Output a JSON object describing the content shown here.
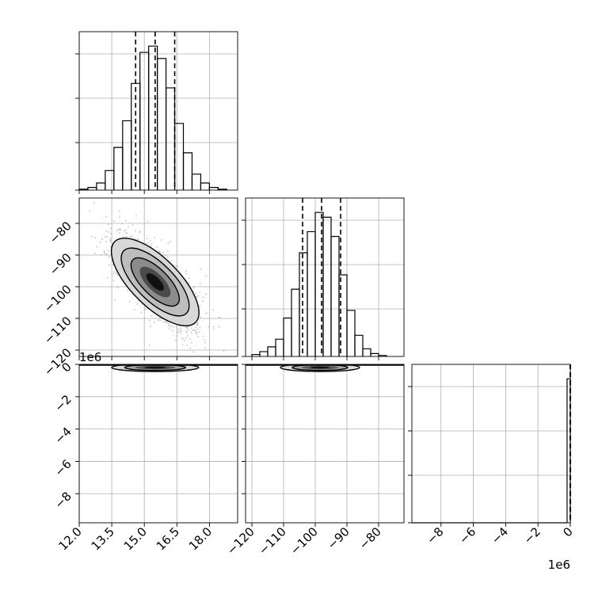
{
  "chart_data": {
    "type": "corner",
    "grid": true,
    "parameters": [
      {
        "range": [
          12.0,
          19.3
        ],
        "ticks": [
          12.0,
          13.5,
          15.0,
          16.5,
          18.0
        ],
        "tick_labels": [
          "12.0",
          "13.5",
          "15.0",
          "16.5",
          "18.0"
        ]
      },
      {
        "range": [
          -122,
          -72
        ],
        "ticks": [
          -120,
          -110,
          -100,
          -90,
          -80
        ],
        "tick_labels": [
          "−120",
          "−110",
          "−100",
          "−90",
          "−80"
        ]
      },
      {
        "range": [
          -9800000.0,
          0.0
        ],
        "ticks": [
          -8000000.0,
          -6000000.0,
          -4000000.0,
          -2000000.0,
          0
        ],
        "tick_labels": [
          "−8",
          "−6",
          "−4",
          "−2",
          "0"
        ],
        "offset_text": "1e6"
      }
    ],
    "marginals": [
      {
        "param": 0,
        "bin_edges": [
          12.0,
          12.4,
          12.8,
          13.2,
          13.6,
          14.0,
          14.4,
          14.8,
          15.2,
          15.6,
          16.0,
          16.4,
          16.8,
          17.2,
          17.6,
          18.0,
          18.4,
          18.8
        ],
        "counts": [
          1,
          3,
          8,
          22,
          48,
          78,
          120,
          155,
          162,
          148,
          115,
          75,
          42,
          18,
          8,
          3,
          1
        ],
        "quantiles": [
          14.6,
          15.5,
          16.4
        ]
      },
      {
        "param": 1,
        "bin_edges": [
          -120,
          -117.5,
          -115,
          -112.5,
          -110,
          -107.5,
          -105,
          -102.5,
          -100,
          -97.5,
          -95,
          -92.5,
          -90,
          -87.5,
          -85,
          -82.5,
          -80,
          -77.5
        ],
        "counts": [
          2,
          5,
          10,
          18,
          40,
          70,
          108,
          130,
          150,
          145,
          125,
          85,
          48,
          22,
          8,
          3,
          1
        ],
        "quantiles": [
          -104,
          -98,
          -92
        ]
      },
      {
        "param": 2,
        "bin_edges": [
          -9800000.0,
          -9400000.0,
          -9000000.0,
          -8600000.0,
          -8200000.0,
          -7800000.0,
          -7400000.0,
          -7000000.0,
          -6600000.0,
          -6200000.0,
          -5800000.0,
          -5400000.0,
          -5000000.0,
          -4600000.0,
          -4200000.0,
          -3800000.0,
          -3400000.0,
          -3000000.0,
          -2600000.0,
          -2200000.0,
          -1800000.0,
          -1400000.0,
          -1000000.0,
          -600000.0,
          -200000.0,
          0.0
        ],
        "counts": [
          0,
          0,
          0,
          0,
          0,
          0,
          0,
          0,
          0,
          0,
          0,
          0,
          0,
          0,
          0,
          0,
          0,
          0,
          0,
          0,
          0,
          0,
          0,
          0,
          160
        ],
        "quantiles": [
          -1000,
          -500,
          -100
        ]
      }
    ],
    "joint": [
      {
        "x": 0,
        "y": 1,
        "mean": [
          15.5,
          -98.5
        ],
        "sd": [
          0.95,
          7.3
        ],
        "corr": -0.7
      },
      {
        "x": 0,
        "y": 2,
        "mean": [
          15.5,
          -100000.0
        ],
        "sd": [
          0.95,
          80000.0
        ],
        "corr": 0.0
      },
      {
        "x": 1,
        "y": 2,
        "mean": [
          -98.5,
          -100000.0
        ],
        "sd": [
          7.3,
          80000.0
        ],
        "corr": 0.0
      }
    ]
  }
}
